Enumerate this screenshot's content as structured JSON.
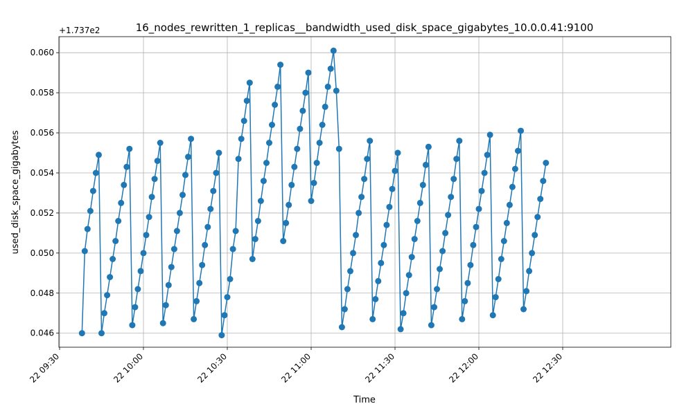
{
  "chart_data": {
    "type": "line",
    "title": "16_nodes_rewritten_1_replicas__bandwidth_used_disk_space_gigabytes_10.0.0.41:9100",
    "xlabel": "Time",
    "ylabel": "used_disk_space_gigabytes",
    "y_offset_label": "+1.737e2",
    "y_offset": 173.7,
    "ylim": [
      0.0453,
      0.0608
    ],
    "xlim": [
      "09:30",
      "12:30"
    ],
    "y_ticks": [
      0.046,
      0.048,
      0.05,
      0.052,
      0.054,
      0.056,
      0.058,
      0.06
    ],
    "y_tick_labels": [
      "0.046",
      "0.048",
      "0.050",
      "0.052",
      "0.054",
      "0.056",
      "0.058",
      "0.060"
    ],
    "x_ticks": [
      "09:30",
      "10:00",
      "10:30",
      "11:00",
      "11:30",
      "12:00",
      "12:30"
    ],
    "x_tick_labels": [
      "22 09:30",
      "22 10:00",
      "22 10:30",
      "22 11:00",
      "22 11:30",
      "22 12:00",
      "22 12:30"
    ],
    "grid": true,
    "color": "#1f77b4",
    "series": [
      {
        "x": [
          "09:38",
          "09:39",
          "09:40",
          "09:41",
          "09:42",
          "09:43",
          "09:44",
          "09:45",
          "09:46",
          "09:47",
          "09:48",
          "09:49",
          "09:50",
          "09:51",
          "09:52",
          "09:53",
          "09:54",
          "09:55",
          "09:56",
          "09:57",
          "09:58",
          "09:59",
          "10:00",
          "10:01",
          "10:02",
          "10:03",
          "10:04",
          "10:05",
          "10:06",
          "10:07",
          "10:08",
          "10:09",
          "10:10",
          "10:11",
          "10:12",
          "10:13",
          "10:14",
          "10:15",
          "10:16",
          "10:17",
          "10:18",
          "10:19",
          "10:20",
          "10:21",
          "10:22",
          "10:23",
          "10:24",
          "10:25",
          "10:26",
          "10:27",
          "10:28",
          "10:29",
          "10:30",
          "10:31",
          "10:32",
          "10:33",
          "10:34",
          "10:35",
          "10:36",
          "10:37",
          "10:38",
          "10:39",
          "10:40",
          "10:41",
          "10:42",
          "10:43",
          "10:44",
          "10:45",
          "10:46",
          "10:47",
          "10:48",
          "10:49",
          "10:50",
          "10:51",
          "10:52",
          "10:53",
          "10:54",
          "10:55",
          "10:56",
          "10:57",
          "10:58",
          "10:59",
          "11:00",
          "11:01",
          "11:02",
          "11:03",
          "11:04",
          "11:05",
          "11:06",
          "11:07",
          "11:08",
          "11:09",
          "11:10",
          "11:11",
          "11:12",
          "11:13",
          "11:14",
          "11:15",
          "11:16",
          "11:17",
          "11:18",
          "11:19",
          "11:20",
          "11:21",
          "11:22",
          "11:23",
          "11:24",
          "11:25",
          "11:26",
          "11:27",
          "11:28",
          "11:29",
          "11:30",
          "11:31",
          "11:32",
          "11:33",
          "11:34",
          "11:35",
          "11:36",
          "11:37",
          "11:38",
          "11:39",
          "11:40",
          "11:41",
          "11:42",
          "11:43",
          "11:44",
          "11:45",
          "11:46",
          "11:47",
          "11:48",
          "11:49",
          "11:50",
          "11:51",
          "11:52",
          "11:53",
          "11:54",
          "11:55",
          "11:56",
          "11:57",
          "11:58",
          "11:59",
          "12:00",
          "12:01",
          "12:02",
          "12:03",
          "12:04",
          "12:05",
          "12:06",
          "12:07",
          "12:08",
          "12:09",
          "12:10",
          "12:11",
          "12:12",
          "12:13",
          "12:14",
          "12:15",
          "12:16",
          "12:17",
          "12:18",
          "12:19",
          "12:20",
          "12:21",
          "12:22",
          "12:23",
          "12:24"
        ],
        "y": [
          0.046,
          0.0501,
          0.0512,
          0.0521,
          0.0531,
          0.054,
          0.0549,
          0.046,
          0.047,
          0.0479,
          0.0488,
          0.0497,
          0.0506,
          0.0516,
          0.0525,
          0.0534,
          0.0543,
          0.0552,
          0.0464,
          0.0473,
          0.0482,
          0.0491,
          0.05,
          0.0509,
          0.0518,
          0.0528,
          0.0537,
          0.0546,
          0.0555,
          0.0465,
          0.0474,
          0.0484,
          0.0493,
          0.0502,
          0.0511,
          0.052,
          0.0529,
          0.0539,
          0.0548,
          0.0557,
          0.0467,
          0.0476,
          0.0485,
          0.0494,
          0.0504,
          0.0513,
          0.0522,
          0.0531,
          0.054,
          0.055,
          0.0459,
          0.0469,
          0.0478,
          0.0487,
          0.0502,
          0.0511,
          0.0547,
          0.0557,
          0.0566,
          0.0576,
          0.0585,
          0.0497,
          0.0507,
          0.0516,
          0.0526,
          0.0536,
          0.0545,
          0.0555,
          0.0564,
          0.0574,
          0.0583,
          0.0594,
          0.0506,
          0.0515,
          0.0524,
          0.0534,
          0.0543,
          0.0552,
          0.0562,
          0.0571,
          0.058,
          0.059,
          0.0526,
          0.0535,
          0.0545,
          0.0555,
          0.0564,
          0.0573,
          0.0583,
          0.0592,
          0.0601,
          0.0581,
          0.0552,
          0.0463,
          0.0472,
          0.0482,
          0.0491,
          0.05,
          0.0509,
          0.052,
          0.0528,
          0.0537,
          0.0547,
          0.0556,
          0.0467,
          0.0477,
          0.0486,
          0.0495,
          0.0504,
          0.0514,
          0.0523,
          0.0532,
          0.0541,
          0.055,
          0.0462,
          0.047,
          0.048,
          0.0489,
          0.0498,
          0.0507,
          0.0516,
          0.0525,
          0.0534,
          0.0544,
          0.0553,
          0.0464,
          0.0473,
          0.0482,
          0.0492,
          0.0501,
          0.051,
          0.0519,
          0.0528,
          0.0537,
          0.0547,
          0.0556,
          0.0467,
          0.0476,
          0.0485,
          0.0494,
          0.0504,
          0.0513,
          0.0522,
          0.0531,
          0.054,
          0.0549,
          0.0559,
          0.0469,
          0.0478,
          0.0487,
          0.0497,
          0.0506,
          0.0515,
          0.0524,
          0.0533,
          0.0542,
          0.0551,
          0.0561,
          0.0472,
          0.0481,
          0.0491,
          0.05,
          0.0509,
          0.0518,
          0.0527,
          0.0536,
          0.0545
        ]
      }
    ]
  }
}
